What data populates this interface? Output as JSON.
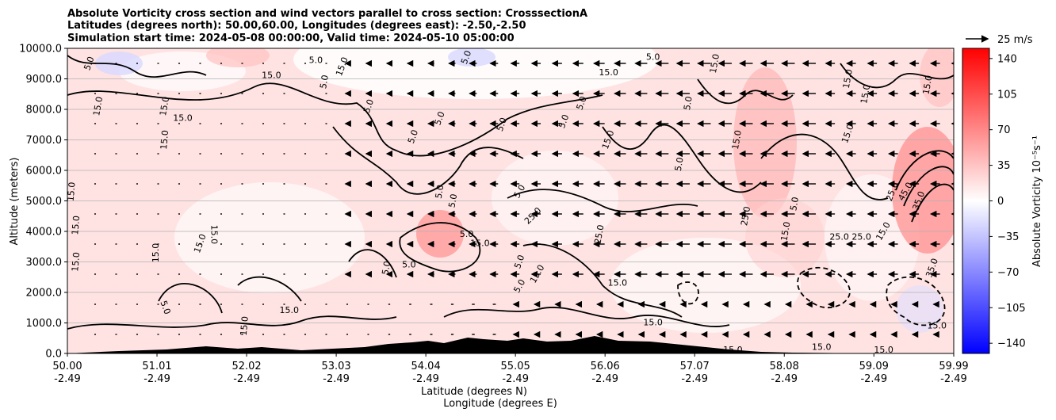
{
  "chart_data": {
    "type": "heatmap",
    "title": [
      "Absolute Vorticity cross section and wind vectors parallel to cross section: CrosssectionA",
      "Latitudes (degrees north): 50.00,60.00, Longitudes (degrees east): -2.50,-2.50",
      "Simulation start time: 2024-05-08 00:00:00, Valid time: 2024-05-10 05:00:00"
    ],
    "xlabel_lines": [
      "Latitude (degrees N)",
      "Longitude (degrees E)"
    ],
    "ylabel": "Altitude (meters)",
    "x_ticks": [
      {
        "lat": "50.00",
        "lon": "-2.49"
      },
      {
        "lat": "51.01",
        "lon": "-2.49"
      },
      {
        "lat": "52.02",
        "lon": "-2.49"
      },
      {
        "lat": "53.03",
        "lon": "-2.49"
      },
      {
        "lat": "54.04",
        "lon": "-2.49"
      },
      {
        "lat": "55.05",
        "lon": "-2.49"
      },
      {
        "lat": "56.06",
        "lon": "-2.49"
      },
      {
        "lat": "57.07",
        "lon": "-2.49"
      },
      {
        "lat": "58.08",
        "lon": "-2.49"
      },
      {
        "lat": "59.09",
        "lon": "-2.49"
      },
      {
        "lat": "59.99",
        "lon": "-2.49"
      }
    ],
    "y_ticks": [
      "0.0",
      "1000.0",
      "2000.0",
      "3000.0",
      "4000.0",
      "5000.0",
      "6000.0",
      "7000.0",
      "8000.0",
      "9000.0",
      "10000.0"
    ],
    "xlim": [
      50.0,
      59.99
    ],
    "ylim": [
      0,
      10000
    ],
    "grid": "horizontal",
    "colorbar": {
      "label": "Absolute Vorticity 10⁻⁵s⁻¹",
      "ticks": [
        "140",
        "105",
        "70",
        "35",
        "0",
        "−35",
        "−70",
        "−105",
        "−140"
      ],
      "range": [
        -150,
        150
      ],
      "cmap": "bwr"
    },
    "quiver_key": "25 m/s",
    "contour_labels": [
      {
        "t": "15.0",
        "lat": 50.1,
        "alt": 3000,
        "rot": -85
      },
      {
        "t": "15.0",
        "lat": 50.1,
        "alt": 4200,
        "rot": -85
      },
      {
        "t": "15.0",
        "lat": 50.05,
        "alt": 5300,
        "rot": -85
      },
      {
        "t": "15.0",
        "lat": 50.35,
        "alt": 8100,
        "rot": -80
      },
      {
        "t": "5.0",
        "lat": 50.25,
        "alt": 9500,
        "rot": -70
      },
      {
        "t": "15.0",
        "lat": 51.0,
        "alt": 3300,
        "rot": -90
      },
      {
        "t": "15.0",
        "lat": 51.1,
        "alt": 7000,
        "rot": -85
      },
      {
        "t": "15.0",
        "lat": 51.3,
        "alt": 7700,
        "rot": 0
      },
      {
        "t": "15.0",
        "lat": 51.1,
        "alt": 8100,
        "rot": -80
      },
      {
        "t": "15.0",
        "lat": 51.5,
        "alt": 3600,
        "rot": -70
      },
      {
        "t": "15.0",
        "lat": 51.65,
        "alt": 3900,
        "rot": 90
      },
      {
        "t": "5.0",
        "lat": 51.1,
        "alt": 1500,
        "rot": 70
      },
      {
        "t": "15.0",
        "lat": 52.0,
        "alt": 900,
        "rot": -85
      },
      {
        "t": "15.0",
        "lat": 52.5,
        "alt": 1400,
        "rot": 0
      },
      {
        "t": "15.0",
        "lat": 52.3,
        "alt": 9100,
        "rot": 0
      },
      {
        "t": "5.0",
        "lat": 52.8,
        "alt": 9600,
        "rot": 0
      },
      {
        "t": "5.0",
        "lat": 52.9,
        "alt": 8900,
        "rot": -80
      },
      {
        "t": "15.0",
        "lat": 53.1,
        "alt": 9400,
        "rot": -70
      },
      {
        "t": "5.0",
        "lat": 53.4,
        "alt": 8100,
        "rot": -70
      },
      {
        "t": "5.0",
        "lat": 53.9,
        "alt": 7100,
        "rot": -70
      },
      {
        "t": "5.0",
        "lat": 53.6,
        "alt": 2800,
        "rot": -80
      },
      {
        "t": "5.0",
        "lat": 53.85,
        "alt": 2900,
        "rot": 0
      },
      {
        "t": "5.0",
        "lat": 54.2,
        "alt": 5300,
        "rot": -80
      },
      {
        "t": "5.0",
        "lat": 54.35,
        "alt": 5000,
        "rot": -80
      },
      {
        "t": "5.0",
        "lat": 54.5,
        "alt": 3900,
        "rot": 0
      },
      {
        "t": "15.0",
        "lat": 54.65,
        "alt": 3600,
        "rot": 0
      },
      {
        "t": "5.0",
        "lat": 54.5,
        "alt": 9700,
        "rot": -70
      },
      {
        "t": "5.0",
        "lat": 54.2,
        "alt": 7700,
        "rot": -70
      },
      {
        "t": "5.0",
        "lat": 54.9,
        "alt": 7500,
        "rot": -70
      },
      {
        "t": "5.0",
        "lat": 55.1,
        "alt": 5300,
        "rot": -60
      },
      {
        "t": "25.0",
        "lat": 55.25,
        "alt": 4500,
        "rot": -45
      },
      {
        "t": "5.0",
        "lat": 55.1,
        "alt": 3000,
        "rot": -70
      },
      {
        "t": "15.0",
        "lat": 55.3,
        "alt": 2600,
        "rot": -60
      },
      {
        "t": "5.0",
        "lat": 55.1,
        "alt": 2200,
        "rot": -60
      },
      {
        "t": "5.0",
        "lat": 55.6,
        "alt": 7600,
        "rot": -70
      },
      {
        "t": "5.0",
        "lat": 55.8,
        "alt": 8200,
        "rot": -70
      },
      {
        "t": "15.0",
        "lat": 56.1,
        "alt": 9200,
        "rot": 0
      },
      {
        "t": "15.0",
        "lat": 56.1,
        "alt": 7000,
        "rot": -70
      },
      {
        "t": "25.0",
        "lat": 56.0,
        "alt": 3900,
        "rot": -80
      },
      {
        "t": "15.0",
        "lat": 56.2,
        "alt": 2300,
        "rot": 0
      },
      {
        "t": "5.0",
        "lat": 56.6,
        "alt": 9700,
        "rot": 0
      },
      {
        "t": "5.0",
        "lat": 57.0,
        "alt": 8200,
        "rot": -80
      },
      {
        "t": "5.0",
        "lat": 56.9,
        "alt": 6200,
        "rot": -80
      },
      {
        "t": "15.0",
        "lat": 56.6,
        "alt": 1000,
        "rot": 0
      },
      {
        "t": "15.0",
        "lat": 57.3,
        "alt": 9500,
        "rot": -80
      },
      {
        "t": "15.0",
        "lat": 57.55,
        "alt": 7000,
        "rot": -80
      },
      {
        "t": "25.0",
        "lat": 57.65,
        "alt": 4500,
        "rot": -80
      },
      {
        "t": "15.0",
        "lat": 58.1,
        "alt": 4000,
        "rot": -80
      },
      {
        "t": "5.0",
        "lat": 58.2,
        "alt": 4900,
        "rot": -80
      },
      {
        "t": "25.0",
        "lat": 58.7,
        "alt": 3800,
        "rot": 0
      },
      {
        "t": "25.0",
        "lat": 58.95,
        "alt": 3800,
        "rot": 0
      },
      {
        "t": "15.0",
        "lat": 58.8,
        "alt": 9000,
        "rot": -80
      },
      {
        "t": "15.0",
        "lat": 58.8,
        "alt": 7200,
        "rot": -70
      },
      {
        "t": "15.0",
        "lat": 59.0,
        "alt": 8500,
        "rot": -80
      },
      {
        "t": "25.0",
        "lat": 59.3,
        "alt": 5300,
        "rot": -70
      },
      {
        "t": "45.0",
        "lat": 59.45,
        "alt": 5300,
        "rot": -60
      },
      {
        "t": "35.0",
        "lat": 59.6,
        "alt": 5000,
        "rot": -70
      },
      {
        "t": "15.0",
        "lat": 59.7,
        "alt": 8800,
        "rot": -80
      },
      {
        "t": "15.0",
        "lat": 59.2,
        "alt": 4000,
        "rot": -60
      },
      {
        "t": "35.0",
        "lat": 59.75,
        "alt": 2800,
        "rot": -70
      },
      {
        "t": "15.0",
        "lat": 59.8,
        "alt": 900,
        "rot": 0
      },
      {
        "t": "15.0",
        "lat": 57.5,
        "alt": 100,
        "rot": 0
      },
      {
        "t": "15.0",
        "lat": 58.5,
        "alt": 200,
        "rot": 0
      },
      {
        "t": "15.0",
        "lat": 59.2,
        "alt": 100,
        "rot": 0
      }
    ]
  }
}
